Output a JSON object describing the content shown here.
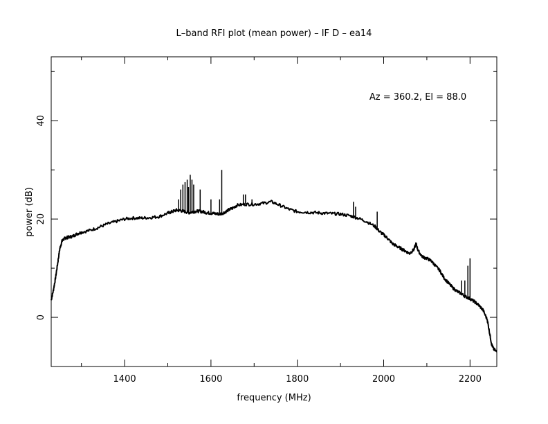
{
  "chart_data": {
    "type": "line",
    "title": "L–band RFI plot (mean power) – IF D – ea14",
    "xlabel": "frequency (MHz)",
    "ylabel": "power (dB)",
    "annotation": "Az = 360.2, El = 88.0",
    "xlim": [
      1230,
      2262
    ],
    "ylim": [
      -10,
      53
    ],
    "x_ticks": [
      1400,
      1600,
      1800,
      2000,
      2200
    ],
    "y_ticks": [
      0,
      20,
      40
    ],
    "x_tick_labels": [
      "1400",
      "1600",
      "1800",
      "2000",
      "2200"
    ],
    "y_tick_labels": [
      "0",
      "20",
      "40"
    ],
    "grid": false,
    "line_color": "#000000",
    "series": [
      {
        "x": [
          1230,
          1235,
          1240,
          1245,
          1250,
          1255,
          1260,
          1265,
          1270,
          1280,
          1290,
          1300,
          1320,
          1340,
          1360,
          1380,
          1400,
          1420,
          1440,
          1460,
          1480,
          1500,
          1510,
          1520,
          1530,
          1540,
          1550,
          1560,
          1570,
          1580,
          1590,
          1600,
          1610,
          1620,
          1630,
          1640,
          1650,
          1660,
          1680,
          1700,
          1720,
          1740,
          1760,
          1780,
          1800,
          1820,
          1840,
          1860,
          1880,
          1900,
          1920,
          1940,
          1960,
          1980,
          1990,
          2000,
          2010,
          2020,
          2030,
          2040,
          2050,
          2060,
          2070,
          2075,
          2080,
          2090,
          2100,
          2110,
          2120,
          2130,
          2140,
          2150,
          2160,
          2170,
          2180,
          2190,
          2200,
          2210,
          2220,
          2230,
          2240,
          2245,
          2250,
          2255,
          2262
        ],
        "y": [
          3.5,
          5.5,
          8,
          11,
          14,
          15.5,
          16,
          16.2,
          16.3,
          16.5,
          17,
          17.3,
          17.7,
          18.3,
          19,
          19.5,
          20,
          20.2,
          20.2,
          20.3,
          20.5,
          21.2,
          21.5,
          21.8,
          21.7,
          21.5,
          21.3,
          21.5,
          21.6,
          21.5,
          21.3,
          21.2,
          21.1,
          21,
          21.3,
          21.8,
          22.2,
          22.8,
          23,
          23,
          23.2,
          23.5,
          22.8,
          22,
          21.5,
          21.4,
          21.3,
          21.2,
          21.1,
          21,
          20.7,
          20.2,
          19.5,
          18.5,
          17.5,
          16.8,
          16,
          15,
          14.5,
          14,
          13.5,
          13,
          13.8,
          15,
          13.5,
          12.3,
          12,
          11.5,
          10.5,
          9.5,
          8,
          7,
          6,
          5.3,
          4.8,
          4.2,
          3.8,
          3.2,
          2.5,
          1.5,
          -0.5,
          -3,
          -5.5,
          -6.5,
          -7
        ]
      }
    ],
    "spikes": {
      "x": [
        1525,
        1530,
        1535,
        1540,
        1545,
        1548,
        1552,
        1556,
        1560,
        1575,
        1600,
        1620,
        1625,
        1675,
        1680,
        1695,
        1930,
        1935,
        1985,
        2180,
        2188,
        2195,
        2200
      ],
      "y": [
        24,
        26,
        27,
        27.5,
        28,
        26.5,
        29,
        28,
        27,
        26,
        24,
        24,
        30,
        25,
        25,
        24,
        23.5,
        22.5,
        21.5,
        7.5,
        7.5,
        10.5,
        12
      ]
    }
  }
}
